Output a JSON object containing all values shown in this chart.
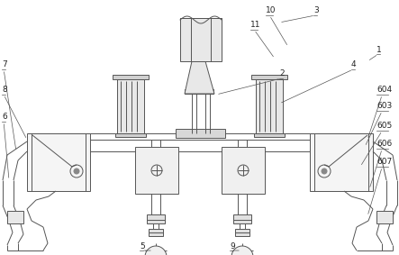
{
  "bg_color": "#ffffff",
  "lc": "#555555",
  "lw": 0.7,
  "fig_w": 4.43,
  "fig_h": 2.83,
  "xlim": [
    0,
    443
  ],
  "ylim": [
    0,
    283
  ]
}
